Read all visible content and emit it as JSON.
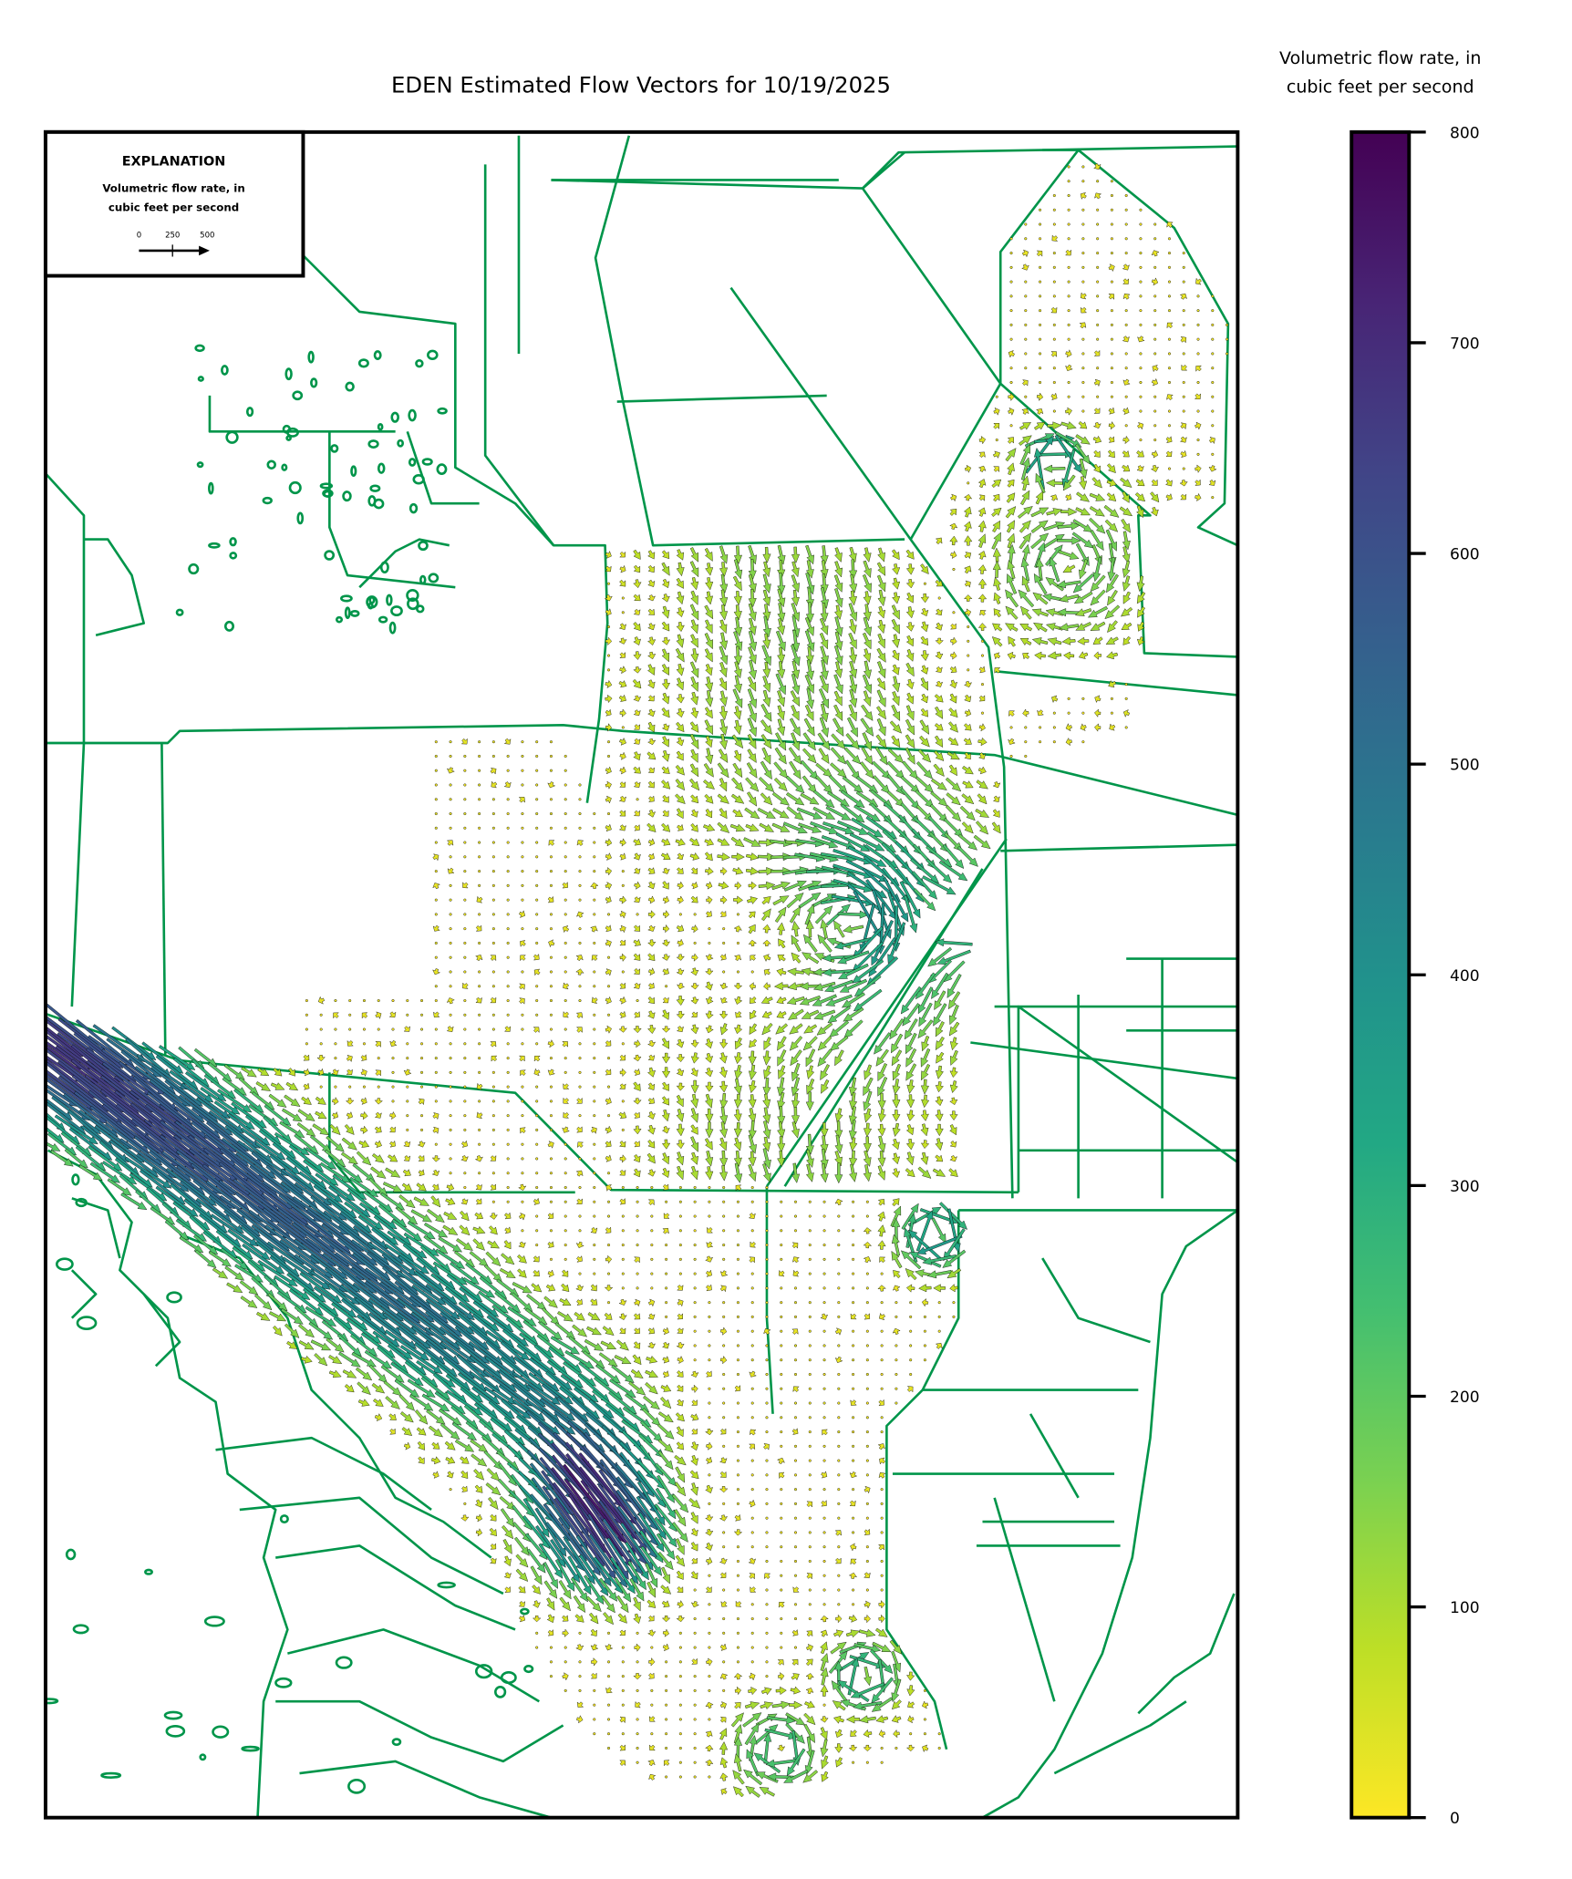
{
  "title": "EDEN Estimated Flow Vectors for 10/19/2025",
  "colorbar": {
    "label_line1": "Volumetric flow rate, in",
    "label_line2": "cubic feet per second",
    "ticks": [
      "0",
      "100",
      "200",
      "300",
      "400",
      "500",
      "600",
      "700",
      "800"
    ],
    "range": [
      0,
      800
    ],
    "colormap": "viridis (reversed)"
  },
  "explanation": {
    "title": "EXPLANATION",
    "line1": "Volumetric flow rate, in",
    "line2": "cubic feet per second",
    "scale_labels": [
      "0",
      "250",
      "500"
    ]
  },
  "colors": {
    "boundary": "#00954a",
    "frame": "#000000",
    "low": "#fde725",
    "high": "#440154"
  }
}
